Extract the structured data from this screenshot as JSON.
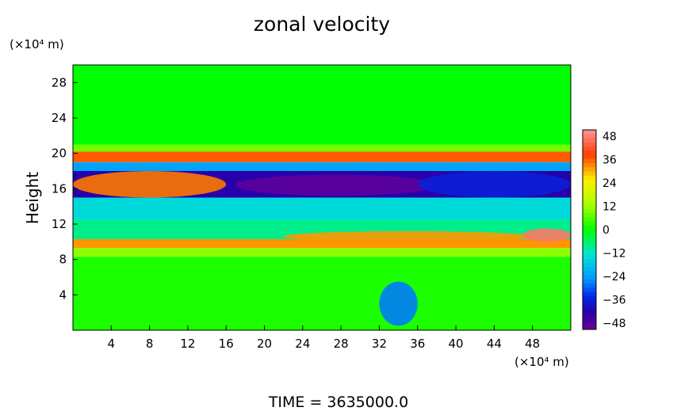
{
  "chart_data": {
    "type": "heatmap",
    "title": "zonal velocity",
    "x_unit_label": "(×10⁴ m)",
    "y_unit_label": "(×10⁴ m)",
    "ylabel": "Height",
    "xlabel": "",
    "xlim": [
      0,
      52
    ],
    "ylim": [
      0,
      30
    ],
    "x_ticks": [
      "4",
      "8",
      "12",
      "16",
      "20",
      "24",
      "28",
      "32",
      "36",
      "40",
      "44",
      "48"
    ],
    "y_ticks": [
      "4",
      "8",
      "12",
      "16",
      "20",
      "24",
      "28"
    ],
    "colorbar": {
      "range": [
        -48,
        48
      ],
      "tick_labels": [
        "48",
        "36",
        "24",
        "12",
        "0",
        "−12",
        "−24",
        "−36",
        "−48"
      ]
    },
    "bands": [
      {
        "y": [
          21.0,
          30.0
        ],
        "value": 0
      },
      {
        "y": [
          20.2,
          21.0
        ],
        "value": 8
      },
      {
        "y": [
          19.0,
          20.2
        ],
        "value": 34
      },
      {
        "y": [
          18.0,
          19.0
        ],
        "value": -22
      },
      {
        "y": [
          15.0,
          18.0
        ],
        "value": -40
      },
      {
        "y": [
          12.5,
          15.0
        ],
        "value": -14
      },
      {
        "y": [
          10.3,
          12.5
        ],
        "value": -8
      },
      {
        "y": [
          9.3,
          10.3
        ],
        "value": 30
      },
      {
        "y": [
          8.3,
          9.3
        ],
        "value": 10
      },
      {
        "y": [
          0.0,
          8.3
        ],
        "value": 2
      }
    ],
    "features": [
      {
        "x": [
          0,
          16
        ],
        "y": [
          15,
          18
        ],
        "value": 32,
        "description": "positive jet lobe"
      },
      {
        "x": [
          17,
          38
        ],
        "y": [
          15.2,
          17.6
        ],
        "value": -46,
        "description": "strong negative jet core"
      },
      {
        "x": [
          36,
          52
        ],
        "y": [
          15,
          18
        ],
        "value": -34
      },
      {
        "x": [
          22,
          48
        ],
        "y": [
          10,
          11.2
        ],
        "value": 30
      },
      {
        "x": [
          47,
          52
        ],
        "y": [
          10,
          11.5
        ],
        "value": 44
      },
      {
        "x": [
          32,
          36
        ],
        "y": [
          0.5,
          5.5
        ],
        "value": -26
      }
    ],
    "annotation": "TIME = 3635000.0"
  }
}
